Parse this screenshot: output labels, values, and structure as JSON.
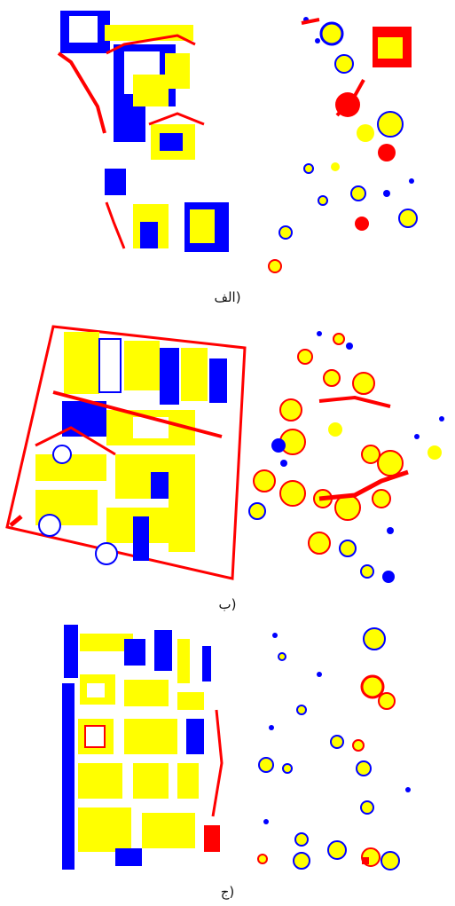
{
  "colors": {
    "red": "#ff0000",
    "yellow": "#ffff00",
    "blue": "#0000ff",
    "background": "#ffffff"
  },
  "panels": [
    {
      "id": "alef",
      "caption": "(الف"
    },
    {
      "id": "be",
      "caption": "(ب"
    },
    {
      "id": "jim",
      "caption": "(ج"
    }
  ]
}
